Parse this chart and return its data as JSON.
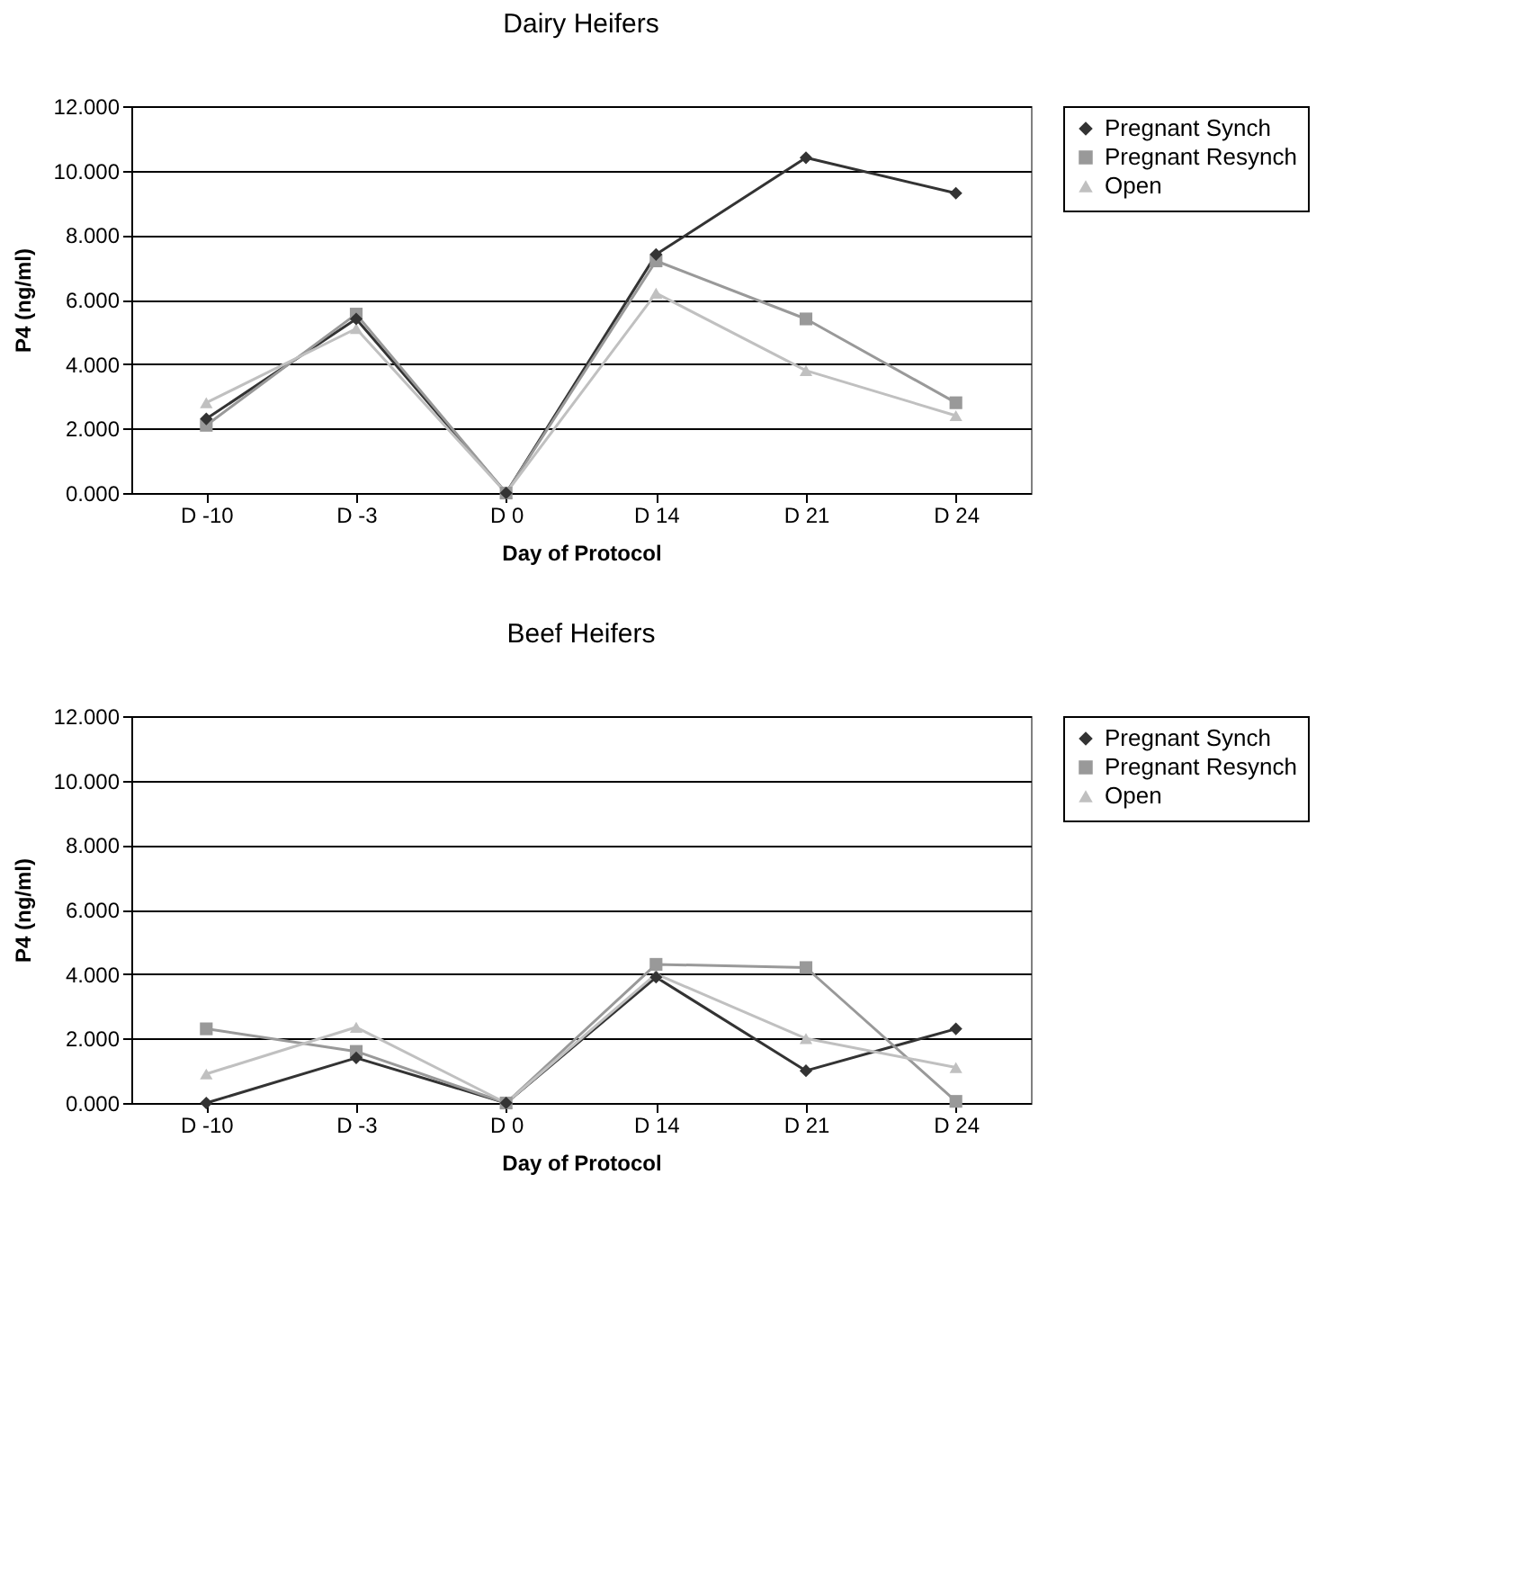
{
  "chart_data": [
    {
      "type": "line",
      "title": "Dairy Heifers",
      "xlabel": "Day of Protocol",
      "ylabel": "P4 (ng/ml)",
      "categories": [
        "D -10",
        "D -3",
        "D 0",
        "D 14",
        "D 21",
        "D 24"
      ],
      "series": [
        {
          "name": "Pregnant Synch",
          "color": "#333333",
          "marker": "diamond",
          "values": [
            2.3,
            5.4,
            0.0,
            7.4,
            10.4,
            9.3
          ]
        },
        {
          "name": "Pregnant Resynch",
          "color": "#999999",
          "marker": "square",
          "values": [
            2.1,
            5.55,
            0.0,
            7.2,
            5.4,
            2.8
          ]
        },
        {
          "name": "Open",
          "color": "#c0c0c0",
          "marker": "triangle",
          "values": [
            2.8,
            5.1,
            0.0,
            6.2,
            3.8,
            2.4
          ]
        }
      ],
      "ylim": [
        0,
        12
      ],
      "yticks": [
        {
          "value": 0,
          "label": "0.000"
        },
        {
          "value": 2,
          "label": "2.000"
        },
        {
          "value": 4,
          "label": "4.000"
        },
        {
          "value": 6,
          "label": "6.000"
        },
        {
          "value": 8,
          "label": "8.000"
        },
        {
          "value": 10,
          "label": "10.000"
        },
        {
          "value": 12,
          "label": "12.000"
        }
      ],
      "grid": "y",
      "legend": "right",
      "line_style": "solid"
    },
    {
      "type": "line",
      "title": "Beef Heifers",
      "xlabel": "Day of Protocol",
      "ylabel": "P4 (ng/ml)",
      "categories": [
        "D -10",
        "D -3",
        "D 0",
        "D 14",
        "D 21",
        "D 24"
      ],
      "series": [
        {
          "name": "Pregnant Synch",
          "color": "#333333",
          "marker": "diamond",
          "values": [
            0.0,
            1.4,
            0.0,
            3.9,
            1.0,
            2.3
          ]
        },
        {
          "name": "Pregnant Resynch",
          "color": "#999999",
          "marker": "square",
          "values": [
            2.3,
            1.6,
            0.0,
            4.3,
            4.2,
            0.05
          ]
        },
        {
          "name": "Open",
          "color": "#c0c0c0",
          "marker": "triangle",
          "values": [
            0.9,
            2.35,
            0.0,
            4.0,
            2.0,
            1.1
          ]
        }
      ],
      "ylim": [
        0,
        12
      ],
      "yticks": [
        {
          "value": 0,
          "label": "0.000"
        },
        {
          "value": 2,
          "label": "2.000"
        },
        {
          "value": 4,
          "label": "4.000"
        },
        {
          "value": 6,
          "label": "6.000"
        },
        {
          "value": 8,
          "label": "8.000"
        },
        {
          "value": 10,
          "label": "10.000"
        },
        {
          "value": 12,
          "label": "12.000"
        }
      ],
      "grid": "y",
      "legend": "right",
      "line_style": "solid"
    }
  ]
}
